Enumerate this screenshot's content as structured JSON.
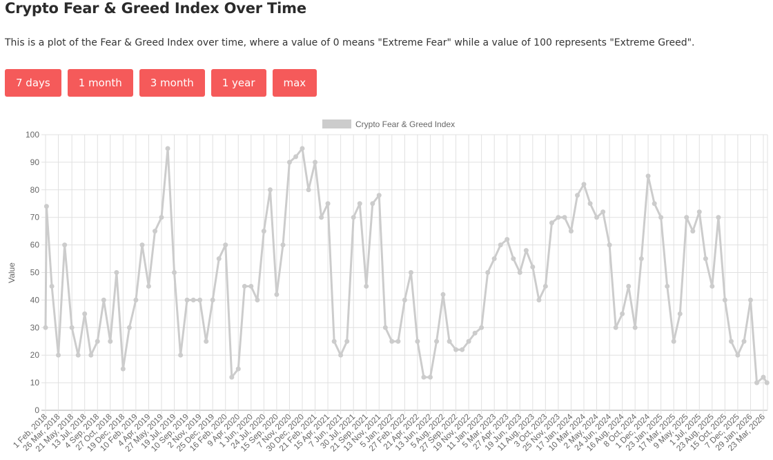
{
  "header": {
    "title": "Crypto Fear & Greed Index Over Time",
    "description": "This is a plot of the Fear & Greed Index over time, where a value of 0 means \"Extreme Fear\" while a value of 100 represents \"Extreme Greed\"."
  },
  "range_buttons": [
    "7 days",
    "1 month",
    "3 month",
    "1 year",
    "max"
  ],
  "colors": {
    "button": "#f55a5a",
    "series": "#cccccc",
    "grid": "#e0e0e0"
  },
  "chart_data": {
    "type": "line",
    "title": "",
    "xlabel": "",
    "ylabel": "Value",
    "ylim": [
      0,
      100
    ],
    "yticks": [
      0,
      10,
      20,
      30,
      40,
      50,
      60,
      70,
      80,
      90,
      100
    ],
    "grid": true,
    "legend": "top-center",
    "series": [
      {
        "name": "Crypto Fear & Greed Index",
        "color": "#cccccc"
      }
    ],
    "xtick_labels": [
      "1 Feb, 2018",
      "26 Mar, 2018",
      "21 May, 2018",
      "13 Jul, 2018",
      "4 Sep, 2018",
      "27 Oct, 2018",
      "19 Dec, 2018",
      "10 Feb, 2019",
      "4 Apr, 2019",
      "27 May, 2019",
      "19 Jul, 2019",
      "10 Sep, 2019",
      "2 Nov, 2019",
      "25 Dec, 2019",
      "16 Feb, 2020",
      "9 Apr, 2020",
      "1 Jun, 2020",
      "24 Jul, 2020",
      "15 Sep, 2020",
      "7 Nov, 2020",
      "30 Dec, 2020",
      "21 Feb, 2021",
      "15 Apr, 2021",
      "7 Jun, 2021",
      "30 Jul, 2021",
      "21 Sep, 2021",
      "13 Nov, 2021",
      "5 Jan, 2022",
      "27 Feb, 2022",
      "21 Apr, 2022",
      "13 Jun, 2022",
      "5 Aug, 2022",
      "27 Sep, 2022",
      "19 Nov, 2022",
      "11 Jan, 2023",
      "5 Mar, 2023",
      "27 Apr, 2023",
      "19 Jun, 2023",
      "11 Aug, 2023",
      "3 Oct, 2023",
      "25 Nov, 2023",
      "17 Jan, 2024",
      "10 Mar, 2024",
      "2 May, 2024",
      "24 Jun, 2024",
      "16 Aug, 2024",
      "8 Oct, 2024",
      "1 Dec, 2024",
      "23 Jan, 2025",
      "17 Mar, 2025",
      "9 May, 2025",
      "1 Jul, 2025",
      "23 Aug, 2025",
      "15 Oct, 2025",
      "7 Dec, 2025",
      "29 Jan, 2026",
      "23 Mar, 2026"
    ],
    "xtick_dates": [
      "2018-02-01",
      "2018-03-26",
      "2018-05-21",
      "2018-07-13",
      "2018-09-04",
      "2018-10-27",
      "2018-12-19",
      "2019-02-10",
      "2019-04-04",
      "2019-05-27",
      "2019-07-19",
      "2019-09-10",
      "2019-11-02",
      "2019-12-25",
      "2020-02-16",
      "2020-04-09",
      "2020-06-01",
      "2020-07-24",
      "2020-09-15",
      "2020-11-07",
      "2020-12-30",
      "2021-02-21",
      "2021-04-15",
      "2021-06-07",
      "2021-07-30",
      "2021-09-21",
      "2021-11-13",
      "2022-01-05",
      "2022-02-27",
      "2022-04-21",
      "2022-06-13",
      "2022-08-05",
      "2022-09-27",
      "2022-11-19",
      "2023-01-11",
      "2023-03-05",
      "2023-04-27",
      "2023-06-19",
      "2023-08-11",
      "2023-10-03",
      "2023-11-25",
      "2024-01-17",
      "2024-03-10",
      "2024-05-02",
      "2024-06-24",
      "2024-08-16",
      "2024-10-08",
      "2024-12-01",
      "2025-01-23",
      "2025-03-17",
      "2025-05-09",
      "2025-07-01",
      "2025-08-23",
      "2025-10-15",
      "2025-12-07",
      "2026-01-29",
      "2026-03-23"
    ],
    "points": [
      [
        "2018-02-01",
        30
      ],
      [
        "2018-02-05",
        74
      ],
      [
        "2018-02-27",
        45
      ],
      [
        "2018-03-26",
        20
      ],
      [
        "2018-04-21",
        60
      ],
      [
        "2018-05-21",
        30
      ],
      [
        "2018-06-16",
        20
      ],
      [
        "2018-07-13",
        35
      ],
      [
        "2018-08-08",
        20
      ],
      [
        "2018-09-04",
        25
      ],
      [
        "2018-09-30",
        40
      ],
      [
        "2018-10-27",
        25
      ],
      [
        "2018-11-22",
        50
      ],
      [
        "2018-12-19",
        15
      ],
      [
        "2019-01-14",
        30
      ],
      [
        "2019-02-10",
        40
      ],
      [
        "2019-03-08",
        60
      ],
      [
        "2019-04-04",
        45
      ],
      [
        "2019-04-30",
        65
      ],
      [
        "2019-05-27",
        70
      ],
      [
        "2019-06-22",
        95
      ],
      [
        "2019-07-19",
        50
      ],
      [
        "2019-08-14",
        20
      ],
      [
        "2019-09-10",
        40
      ],
      [
        "2019-10-06",
        40
      ],
      [
        "2019-11-02",
        40
      ],
      [
        "2019-11-28",
        25
      ],
      [
        "2019-12-25",
        40
      ],
      [
        "2020-01-20",
        55
      ],
      [
        "2020-02-16",
        60
      ],
      [
        "2020-03-13",
        12
      ],
      [
        "2020-04-09",
        15
      ],
      [
        "2020-05-05",
        45
      ],
      [
        "2020-06-01",
        45
      ],
      [
        "2020-06-27",
        40
      ],
      [
        "2020-07-24",
        65
      ],
      [
        "2020-08-19",
        80
      ],
      [
        "2020-09-15",
        42
      ],
      [
        "2020-10-11",
        60
      ],
      [
        "2020-11-07",
        90
      ],
      [
        "2020-12-03",
        92
      ],
      [
        "2020-12-30",
        95
      ],
      [
        "2021-01-25",
        80
      ],
      [
        "2021-02-21",
        90
      ],
      [
        "2021-03-19",
        70
      ],
      [
        "2021-04-15",
        75
      ],
      [
        "2021-05-11",
        25
      ],
      [
        "2021-06-07",
        20
      ],
      [
        "2021-07-03",
        25
      ],
      [
        "2021-07-30",
        70
      ],
      [
        "2021-08-25",
        75
      ],
      [
        "2021-09-21",
        45
      ],
      [
        "2021-10-17",
        75
      ],
      [
        "2021-11-13",
        78
      ],
      [
        "2021-12-09",
        30
      ],
      [
        "2022-01-05",
        25
      ],
      [
        "2022-01-31",
        25
      ],
      [
        "2022-02-27",
        40
      ],
      [
        "2022-03-25",
        50
      ],
      [
        "2022-04-21",
        25
      ],
      [
        "2022-05-17",
        12
      ],
      [
        "2022-06-13",
        12
      ],
      [
        "2022-07-09",
        25
      ],
      [
        "2022-08-05",
        42
      ],
      [
        "2022-08-31",
        25
      ],
      [
        "2022-09-27",
        22
      ],
      [
        "2022-10-23",
        22
      ],
      [
        "2022-11-19",
        25
      ],
      [
        "2022-12-15",
        28
      ],
      [
        "2023-01-11",
        30
      ],
      [
        "2023-02-06",
        50
      ],
      [
        "2023-03-05",
        55
      ],
      [
        "2023-03-31",
        60
      ],
      [
        "2023-04-27",
        62
      ],
      [
        "2023-05-23",
        55
      ],
      [
        "2023-06-19",
        50
      ],
      [
        "2023-07-15",
        58
      ],
      [
        "2023-08-11",
        52
      ],
      [
        "2023-09-06",
        40
      ],
      [
        "2023-10-03",
        45
      ],
      [
        "2023-10-29",
        68
      ],
      [
        "2023-11-25",
        70
      ],
      [
        "2023-12-21",
        70
      ],
      [
        "2024-01-17",
        65
      ],
      [
        "2024-02-12",
        78
      ],
      [
        "2024-03-10",
        82
      ],
      [
        "2024-04-05",
        75
      ],
      [
        "2024-05-02",
        70
      ],
      [
        "2024-05-28",
        72
      ],
      [
        "2024-06-24",
        60
      ],
      [
        "2024-07-20",
        30
      ],
      [
        "2024-08-16",
        35
      ],
      [
        "2024-09-11",
        45
      ],
      [
        "2024-10-08",
        30
      ],
      [
        "2024-11-03",
        55
      ],
      [
        "2024-12-01",
        85
      ],
      [
        "2024-12-27",
        75
      ],
      [
        "2025-01-23",
        70
      ],
      [
        "2025-02-18",
        45
      ],
      [
        "2025-03-17",
        25
      ],
      [
        "2025-04-12",
        35
      ],
      [
        "2025-05-09",
        70
      ],
      [
        "2025-06-04",
        65
      ],
      [
        "2025-07-01",
        72
      ],
      [
        "2025-07-27",
        55
      ],
      [
        "2025-08-23",
        45
      ],
      [
        "2025-09-18",
        70
      ],
      [
        "2025-10-15",
        40
      ],
      [
        "2025-11-10",
        25
      ],
      [
        "2025-12-07",
        20
      ],
      [
        "2026-01-02",
        25
      ],
      [
        "2026-01-29",
        40
      ],
      [
        "2026-02-24",
        10
      ],
      [
        "2026-03-23",
        12
      ],
      [
        "2026-04-07",
        10
      ]
    ]
  }
}
